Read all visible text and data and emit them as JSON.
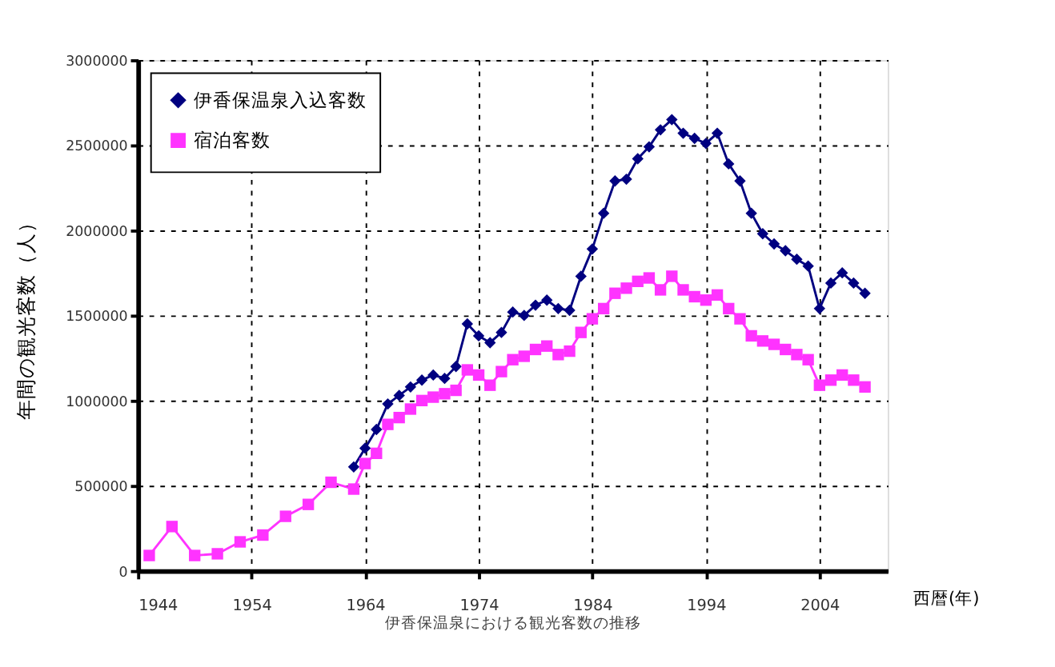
{
  "chart_data": {
    "type": "line",
    "xlabel": "西暦(年)",
    "ylabel": "年間の観光客数（人）",
    "annotations": [
      "伊香保温泉における観光客数の推移"
    ],
    "xlim": [
      1944,
      2010
    ],
    "xticks": [
      1944,
      1954,
      1964,
      1974,
      1984,
      1994,
      2004
    ],
    "ylim": [
      0,
      3000000
    ],
    "yticks": [
      0,
      500000,
      1000000,
      1500000,
      2000000,
      2500000,
      3000000
    ],
    "grid": true,
    "legend": "top left",
    "line_style": "solid",
    "series": [
      {
        "name": "伊香保温泉入込客数",
        "color": "#000080",
        "marker": "diamond",
        "x": [
          1963,
          1964,
          1965,
          1966,
          1967,
          1968,
          1969,
          1970,
          1971,
          1972,
          1973,
          1974,
          1975,
          1976,
          1977,
          1978,
          1979,
          1980,
          1981,
          1982,
          1983,
          1984,
          1985,
          1986,
          1987,
          1988,
          1989,
          1990,
          1991,
          1992,
          1993,
          1994,
          1995,
          1996,
          1997,
          1998,
          1999,
          2000,
          2001,
          2002,
          2003,
          2004,
          2005,
          2006,
          2007,
          2008
        ],
        "values": [
          610000,
          720000,
          830000,
          980000,
          1030000,
          1080000,
          1120000,
          1150000,
          1130000,
          1200000,
          1450000,
          1380000,
          1340000,
          1400000,
          1520000,
          1500000,
          1560000,
          1590000,
          1540000,
          1530000,
          1730000,
          1890000,
          2100000,
          2290000,
          2300000,
          2420000,
          2490000,
          2590000,
          2650000,
          2570000,
          2540000,
          2510000,
          2570000,
          2390000,
          2290000,
          2100000,
          1980000,
          1920000,
          1880000,
          1830000,
          1790000,
          1540000,
          1690000,
          1750000,
          1690000,
          1630000
        ]
      },
      {
        "name": "宿泊客数",
        "color": "#ff33ff",
        "marker": "square",
        "x": [
          1945,
          1947,
          1949,
          1951,
          1953,
          1955,
          1957,
          1959,
          1961,
          1963,
          1964,
          1965,
          1966,
          1967,
          1968,
          1969,
          1970,
          1971,
          1972,
          1973,
          1974,
          1975,
          1976,
          1977,
          1978,
          1979,
          1980,
          1981,
          1982,
          1983,
          1984,
          1985,
          1986,
          1987,
          1988,
          1989,
          1990,
          1991,
          1992,
          1993,
          1994,
          1995,
          1996,
          1997,
          1998,
          1999,
          2000,
          2001,
          2002,
          2003,
          2004,
          2005,
          2006,
          2007,
          2008
        ],
        "values": [
          90000,
          260000,
          90000,
          100000,
          170000,
          210000,
          320000,
          390000,
          520000,
          480000,
          630000,
          690000,
          860000,
          900000,
          950000,
          1000000,
          1020000,
          1040000,
          1060000,
          1180000,
          1150000,
          1090000,
          1170000,
          1240000,
          1260000,
          1300000,
          1320000,
          1270000,
          1290000,
          1400000,
          1480000,
          1540000,
          1630000,
          1660000,
          1700000,
          1720000,
          1650000,
          1730000,
          1650000,
          1610000,
          1590000,
          1620000,
          1540000,
          1480000,
          1380000,
          1350000,
          1330000,
          1300000,
          1270000,
          1240000,
          1090000,
          1120000,
          1150000,
          1120000,
          1080000
        ]
      }
    ]
  }
}
